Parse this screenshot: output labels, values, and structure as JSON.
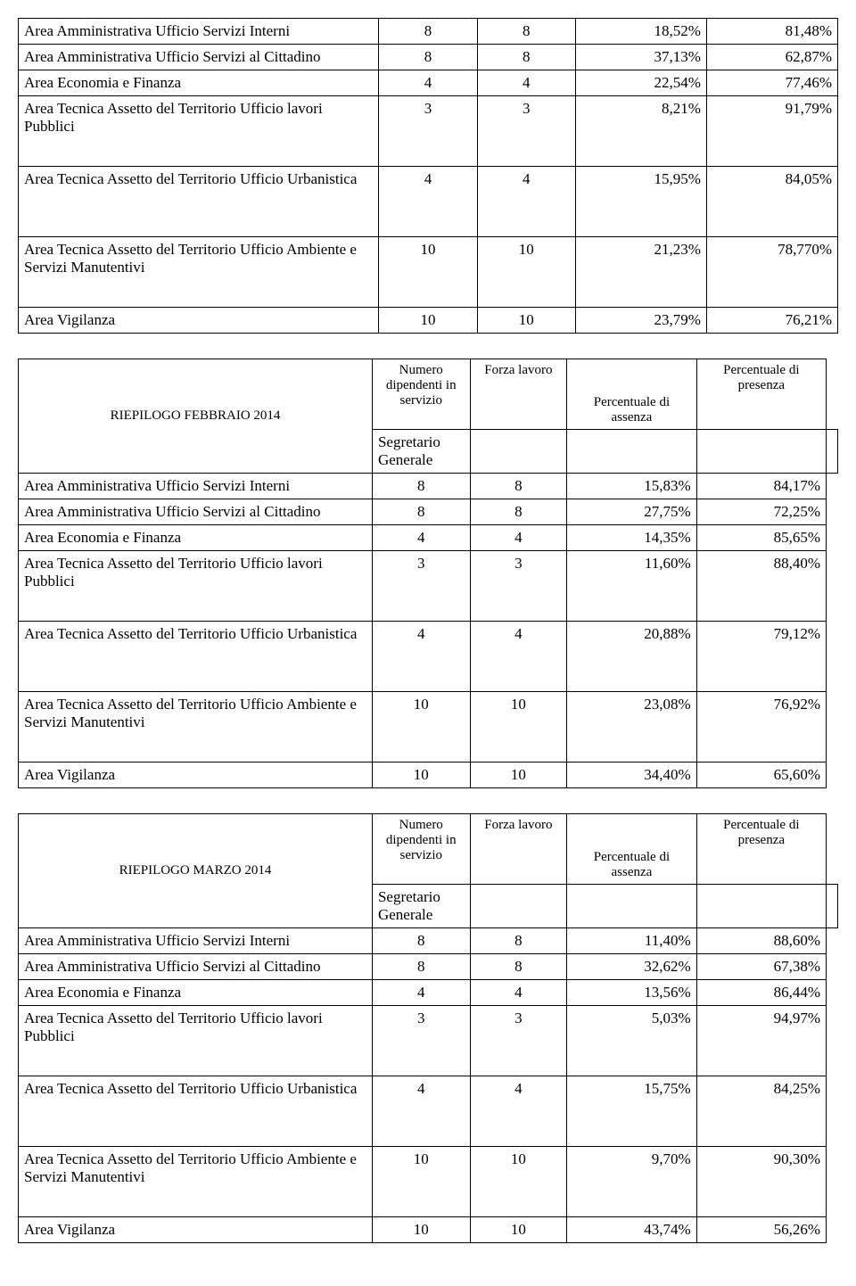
{
  "tables": [
    {
      "title": null,
      "headers": null,
      "rows": [
        {
          "label": "Area  Amministrativa Ufficio Servizi Interni",
          "n1": "8",
          "n2": "8",
          "p1": "18,52%",
          "p2": "81,48%",
          "tall": false
        },
        {
          "label": "Area  Amministrativa Ufficio Servizi al Cittadino",
          "n1": "8",
          "n2": "8",
          "p1": "37,13%",
          "p2": "62,87%",
          "tall": false
        },
        {
          "label": "Area Economia e Finanza",
          "n1": "4",
          "n2": "4",
          "p1": "22,54%",
          "p2": "77,46%",
          "tall": false
        },
        {
          "label": "Area Tecnica Assetto del Territorio Ufficio lavori Pubblici",
          "n1": "3",
          "n2": "3",
          "p1": "8,21%",
          "p2": "91,79%",
          "tall": true
        },
        {
          "label": "Area Tecnica Assetto del Territorio Ufficio Urbanistica",
          "n1": "4",
          "n2": "4",
          "p1": "15,95%",
          "p2": "84,05%",
          "tall": true
        },
        {
          "label": "Area Tecnica Assetto del Territorio Ufficio Ambiente e Servizi Manutentivi",
          "n1": "10",
          "n2": "10",
          "p1": "21,23%",
          "p2": "78,770%",
          "tall": true
        },
        {
          "label": "Area Vigilanza",
          "n1": "10",
          "n2": "10",
          "p1": "23,79%",
          "p2": "76,21%",
          "tall": false
        }
      ]
    },
    {
      "title": "RIEPILOGO FEBBRAIO 2014",
      "headers": {
        "h1": "Numero dipendenti in servizio",
        "h2": "Forza lavoro",
        "h3": "Percentuale di assenza",
        "h4": "Percentuale di presenza"
      },
      "segretario": "Segretario   Generale",
      "rows": [
        {
          "label": "Area  Amministrativa Ufficio Servizi Interni",
          "n1": "8",
          "n2": "8",
          "p1": "15,83%",
          "p2": "84,17%",
          "tall": false
        },
        {
          "label": "Area  Amministrativa Ufficio Servizi al Cittadino",
          "n1": "8",
          "n2": "8",
          "p1": "27,75%",
          "p2": "72,25%",
          "tall": false
        },
        {
          "label": "Area Economia e Finanza",
          "n1": "4",
          "n2": "4",
          "p1": "14,35%",
          "p2": "85,65%",
          "tall": false
        },
        {
          "label": "Area Tecnica Assetto del Territorio Ufficio lavori Pubblici",
          "n1": "3",
          "n2": "3",
          "p1": "11,60%",
          "p2": "88,40%",
          "tall": true
        },
        {
          "label": "Area Tecnica Assetto del Territorio Ufficio Urbanistica",
          "n1": "4",
          "n2": "4",
          "p1": "20,88%",
          "p2": "79,12%",
          "tall": true
        },
        {
          "label": "Area Tecnica Assetto del Territorio Ufficio Ambiente e Servizi Manutentivi",
          "n1": "10",
          "n2": "10",
          "p1": "23,08%",
          "p2": "76,92%",
          "tall": true
        },
        {
          "label": "Area Vigilanza",
          "n1": "10",
          "n2": "10",
          "p1": "34,40%",
          "p2": "65,60%",
          "tall": false
        }
      ]
    },
    {
      "title": "RIEPILOGO MARZO 2014",
      "headers": {
        "h1": "Numero dipendenti in servizio",
        "h2": "Forza lavoro",
        "h3": "Percentuale di assenza",
        "h4": "Percentuale di presenza"
      },
      "segretario": "Segretario   Generale",
      "rows": [
        {
          "label": "Area  Amministrativa Ufficio Servizi Interni",
          "n1": "8",
          "n2": "8",
          "p1": "11,40%",
          "p2": "88,60%",
          "tall": false
        },
        {
          "label": "Area  Amministrativa Ufficio Servizi al Cittadino",
          "n1": "8",
          "n2": "8",
          "p1": "32,62%",
          "p2": "67,38%",
          "tall": false
        },
        {
          "label": "Area Economia e Finanza",
          "n1": "4",
          "n2": "4",
          "p1": "13,56%",
          "p2": "86,44%",
          "tall": false
        },
        {
          "label": "Area Tecnica Assetto del Territorio Ufficio lavori Pubblici",
          "n1": "3",
          "n2": "3",
          "p1": "5,03%",
          "p2": "94,97%",
          "tall": true
        },
        {
          "label": "Area Tecnica Assetto del Territorio Ufficio Urbanistica",
          "n1": "4",
          "n2": "4",
          "p1": "15,75%",
          "p2": "84,25%",
          "tall": true
        },
        {
          "label": "Area Tecnica Assetto del Territorio Ufficio Ambiente e Servizi Manutentivi",
          "n1": "10",
          "n2": "10",
          "p1": "9,70%",
          "p2": "90,30%",
          "tall": true
        },
        {
          "label": "Area Vigilanza",
          "n1": "10",
          "n2": "10",
          "p1": "43,74%",
          "p2": "56,26%",
          "tall": false
        }
      ]
    }
  ]
}
